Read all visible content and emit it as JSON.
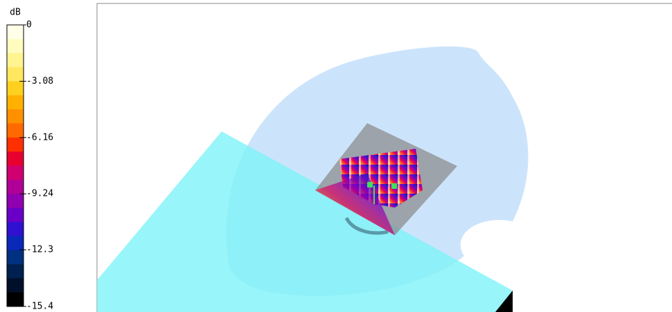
{
  "colorbar": {
    "unit": "dB",
    "ticks": [
      0,
      -3.08,
      -6.16,
      -9.24,
      -12.3,
      -15.4
    ]
  }
}
